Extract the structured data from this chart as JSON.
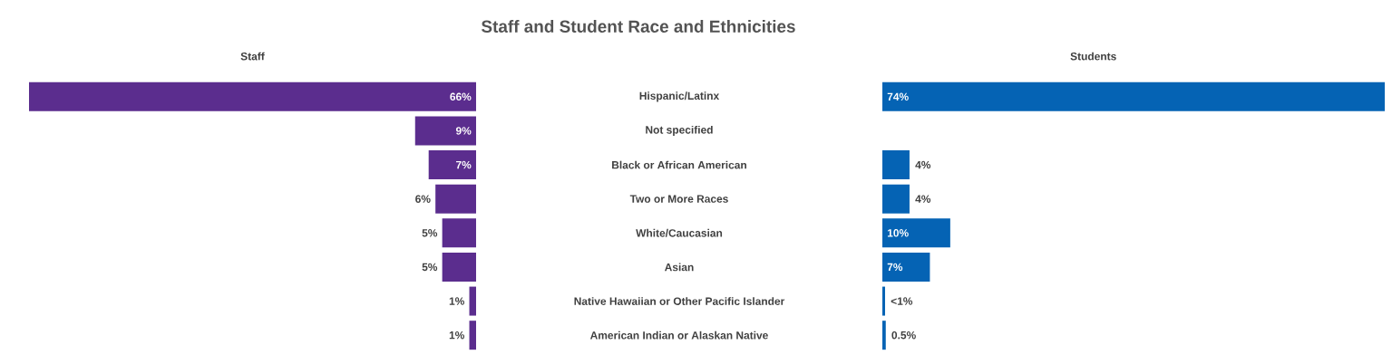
{
  "chart_data": [
    {
      "type": "bar",
      "orientation": "horizontal",
      "title": "Staff and Student Race and Ethnicities",
      "xlabel": "Staff",
      "categories": [
        "Hispanic/Latinx",
        "Not specified",
        "Black or African American",
        "Two or More Races",
        "White/Caucasian",
        "Asian",
        "Native Hawaiian or Other Pacific Islander",
        "American Indian or Alaskan Native"
      ],
      "values": [
        66,
        9,
        7,
        6,
        5,
        5,
        1,
        1
      ],
      "value_labels": [
        "66%",
        "9%",
        "7%",
        "6%",
        "5%",
        "5%",
        "1%",
        "1%"
      ],
      "color": "#5b2d8e",
      "xlim": [
        66,
        0
      ],
      "tick_labels": "y"
    },
    {
      "type": "bar",
      "orientation": "horizontal",
      "xlabel": "Students",
      "categories": [
        null,
        null,
        null,
        null,
        null,
        null,
        null,
        null
      ],
      "values": [
        74,
        null,
        4,
        4,
        10,
        7,
        0.4,
        0.5
      ],
      "value_labels": [
        "74%",
        null,
        "4%",
        "4%",
        "10%",
        "7%",
        "<1%",
        "0.5%"
      ],
      "color": "#0563b4",
      "xlim": [
        0,
        74
      ],
      "tick_labels": false
    }
  ]
}
